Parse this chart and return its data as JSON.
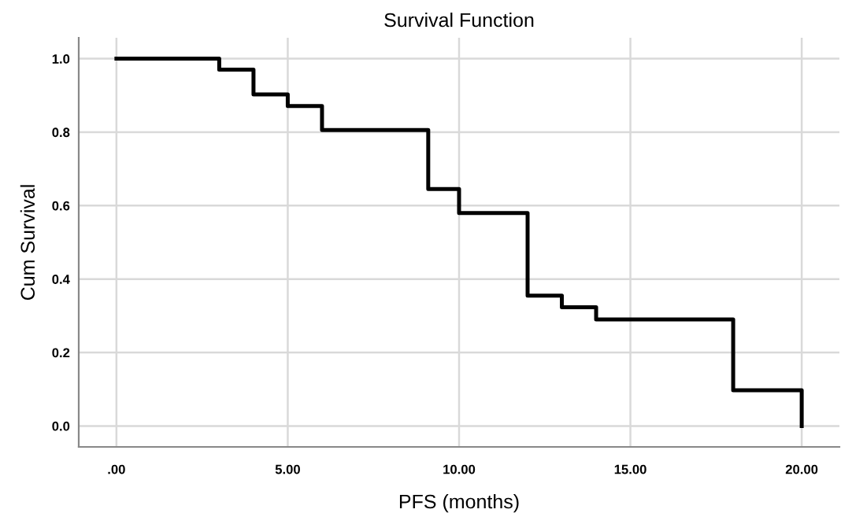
{
  "chart_data": {
    "type": "step",
    "title": "Survival Function",
    "xlabel": "PFS (months)",
    "ylabel": "Cum Survival",
    "series": [
      {
        "color": "#000000",
        "x": [
          0,
          3,
          4,
          5,
          6,
          9.1,
          10,
          12,
          13,
          14,
          18,
          20
        ],
        "values": [
          1.0,
          0.97,
          0.903,
          0.871,
          0.806,
          0.645,
          0.58,
          0.355,
          0.323,
          0.29,
          0.097,
          0.0
        ]
      }
    ],
    "xlim": [
      -1.1,
      21.1
    ],
    "ylim": [
      -0.057,
      1.057
    ],
    "xticks": [
      {
        "value": 0,
        "label": ".00"
      },
      {
        "value": 5,
        "label": "5.00"
      },
      {
        "value": 10,
        "label": "10.00"
      },
      {
        "value": 15,
        "label": "15.00"
      },
      {
        "value": 20,
        "label": "20.00"
      }
    ],
    "yticks": [
      {
        "value": 0,
        "label": "0.0"
      },
      {
        "value": 0.2,
        "label": "0.2"
      },
      {
        "value": 0.4,
        "label": "0.4"
      },
      {
        "value": 0.6,
        "label": "0.6"
      },
      {
        "value": 0.8,
        "label": "0.8"
      },
      {
        "value": 1.0,
        "label": "1.0"
      }
    ],
    "grid": true
  }
}
